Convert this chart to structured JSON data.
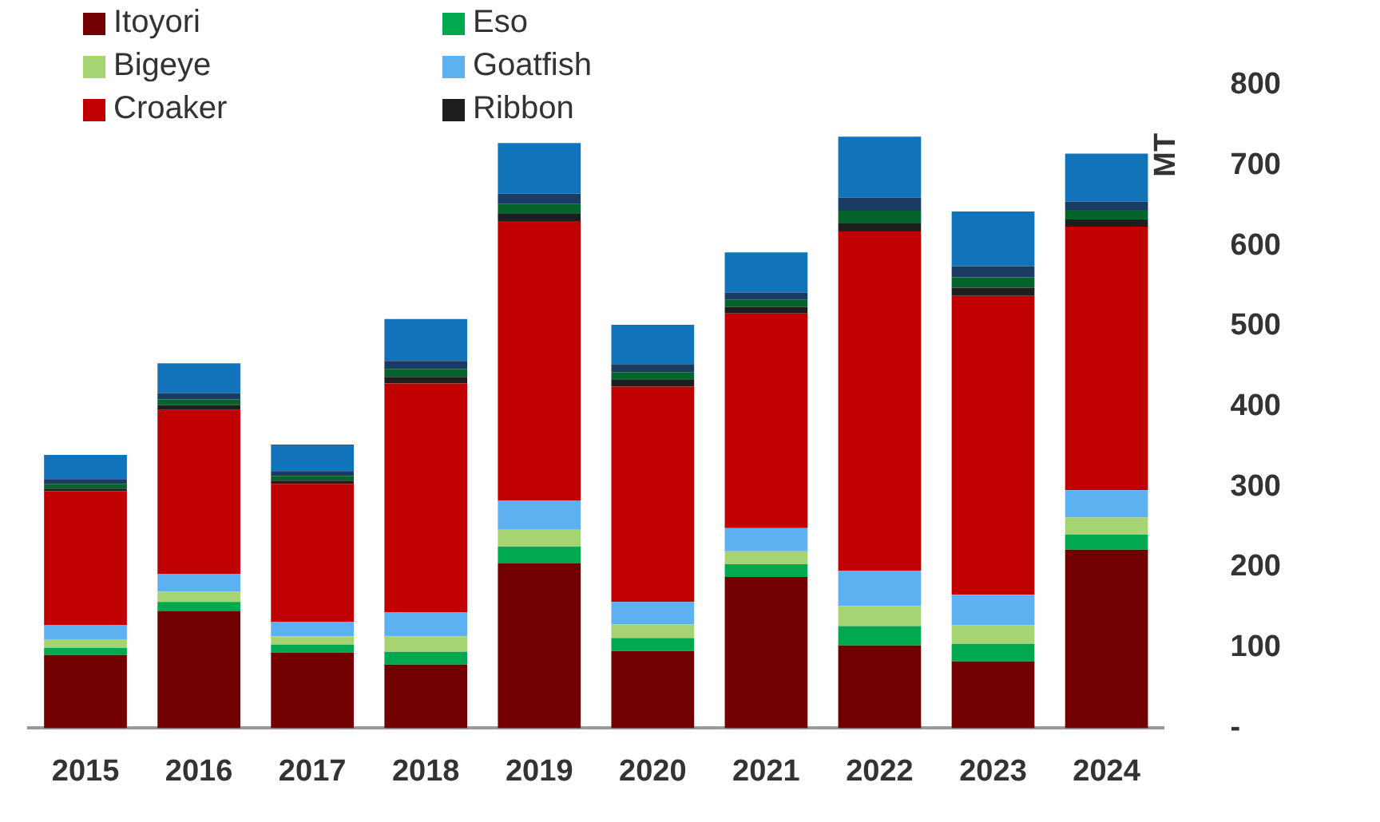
{
  "chart_data": {
    "type": "bar",
    "stacked": true,
    "ylabel": "MT",
    "legend": "top left",
    "grid": false,
    "categories": [
      "2015",
      "2016",
      "2017",
      "2018",
      "2019",
      "2020",
      "2021",
      "2022",
      "2023",
      "2024"
    ],
    "ylim": [
      0,
      800
    ],
    "yticks": [
      {
        "value": 0,
        "label": "-"
      },
      100,
      200,
      300,
      400,
      500,
      600,
      700,
      800
    ],
    "series": [
      {
        "name": "Itoyori",
        "color": "#720000",
        "values": [
          91,
          146,
          94,
          79,
          205,
          96,
          188,
          103,
          83,
          222
        ]
      },
      {
        "name": "Eso",
        "color": "#00a84f",
        "values": [
          9,
          11,
          10,
          16,
          21,
          16,
          16,
          24,
          22,
          19
        ]
      },
      {
        "name": "Bigeye",
        "color": "#a6d473",
        "values": [
          10,
          13,
          10,
          19,
          21,
          17,
          16,
          25,
          23,
          21
        ]
      },
      {
        "name": "Goatfish",
        "color": "#5db1f0",
        "values": [
          18,
          22,
          18,
          30,
          36,
          28,
          29,
          44,
          38,
          34
        ]
      },
      {
        "name": "Croaker",
        "color": "#c00000",
        "values": [
          167,
          204,
          172,
          285,
          348,
          268,
          267,
          422,
          372,
          328
        ]
      },
      {
        "name": "Ribbon",
        "color": "#1e1e1e",
        "values": [
          3,
          6,
          4,
          8,
          9,
          9,
          8,
          10,
          10,
          9
        ]
      },
      {
        "color": "#05642c",
        "values": [
          6,
          7,
          6,
          10,
          12,
          9,
          9,
          16,
          13,
          12
        ]
      },
      {
        "color": "#1a3c64",
        "values": [
          6,
          8,
          6,
          10,
          13,
          10,
          9,
          16,
          14,
          10
        ]
      },
      {
        "color": "#1173ba",
        "values": [
          30,
          37,
          33,
          52,
          63,
          49,
          50,
          76,
          68,
          60
        ]
      }
    ]
  }
}
